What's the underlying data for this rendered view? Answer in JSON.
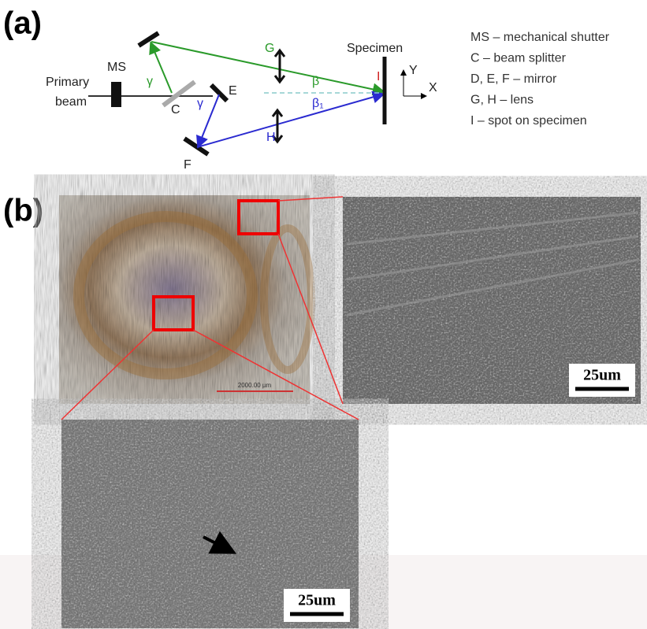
{
  "panel_a": {
    "label": "(a)",
    "labels": {
      "ms": "MS",
      "primary": "Primary",
      "beam": "beam",
      "c": "C",
      "gamma_green": "γ",
      "e": "E",
      "gamma_blue": "γ",
      "f": "F",
      "g": "G",
      "h": "H",
      "beta": "β",
      "beta1": "β₁",
      "i": "I",
      "specimen": "Specimen",
      "y": "Y",
      "x": "X"
    },
    "legend": [
      "MS – mechanical shutter",
      "C – beam splitter",
      "D, E, F – mirror",
      "G, H – lens",
      "I – spot on specimen"
    ]
  },
  "panel_b": {
    "label": "(b)",
    "optical_scale": "2000.00 µm",
    "sem_top_scale": "25um",
    "sem_bottom_scale": "25um"
  }
}
